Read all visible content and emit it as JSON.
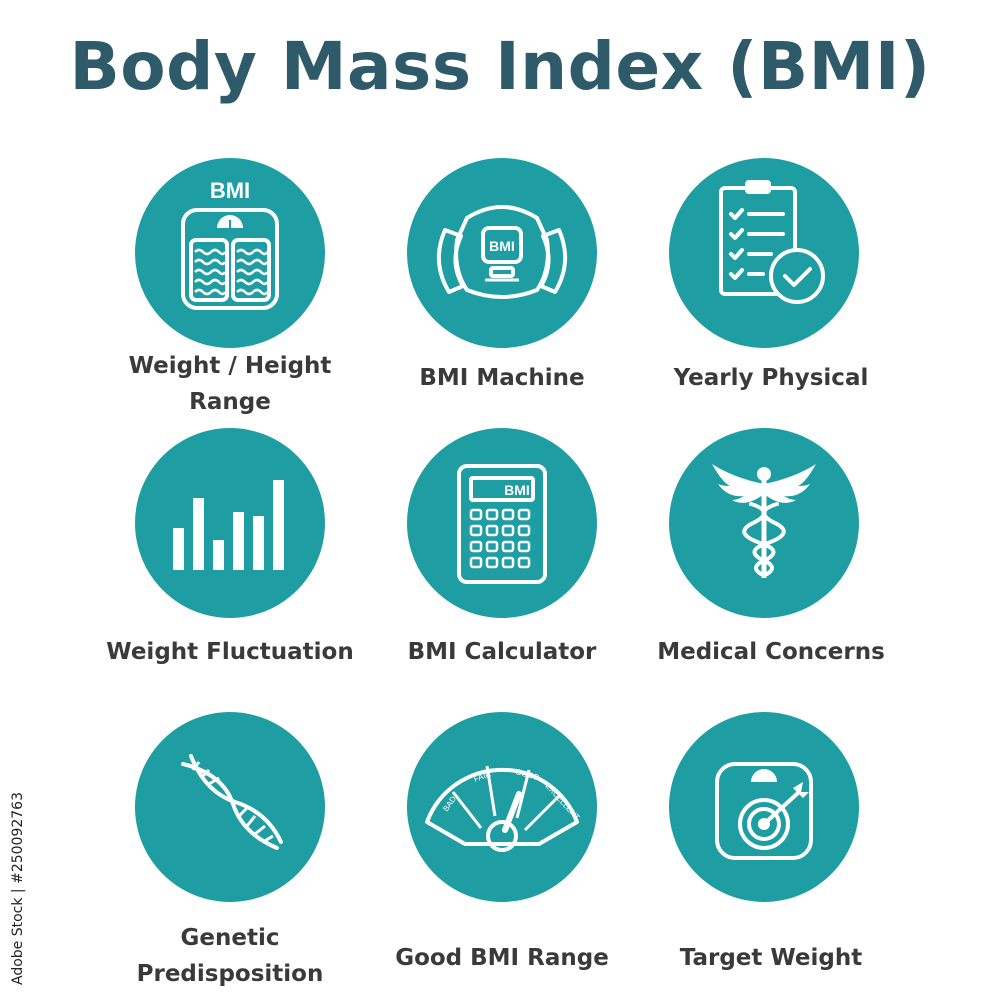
{
  "title": "Body Mass Index (BMI)",
  "accent_color": "#1e9ea3",
  "title_color": "#2e5a6a",
  "icons": [
    {
      "label_lines": [
        "Weight / Height",
        "Range"
      ],
      "icon": "bmi-scale-icon",
      "icon_text": "BMI"
    },
    {
      "label_lines": [
        "BMI Machine"
      ],
      "icon": "bmi-machine-icon",
      "icon_text": "BMI"
    },
    {
      "label_lines": [
        "Yearly Physical"
      ],
      "icon": "clipboard-check-icon"
    },
    {
      "label_lines": [
        "Weight Fluctuation"
      ],
      "icon": "bar-chart-icon"
    },
    {
      "label_lines": [
        "BMI Calculator"
      ],
      "icon": "calculator-icon",
      "icon_text": "BMI"
    },
    {
      "label_lines": [
        "Medical Concerns"
      ],
      "icon": "caduceus-icon"
    },
    {
      "label_lines": [
        "Genetic",
        "Predisposition"
      ],
      "icon": "dna-icon"
    },
    {
      "label_lines": [
        "Good BMI Range"
      ],
      "icon": "gauge-icon",
      "gauge_labels": [
        "BAD",
        "FAIR",
        "GOOD",
        "EXCELLENT"
      ]
    },
    {
      "label_lines": [
        "Target Weight"
      ],
      "icon": "target-scale-icon"
    }
  ],
  "stock_id": "Adobe Stock | #250092763"
}
